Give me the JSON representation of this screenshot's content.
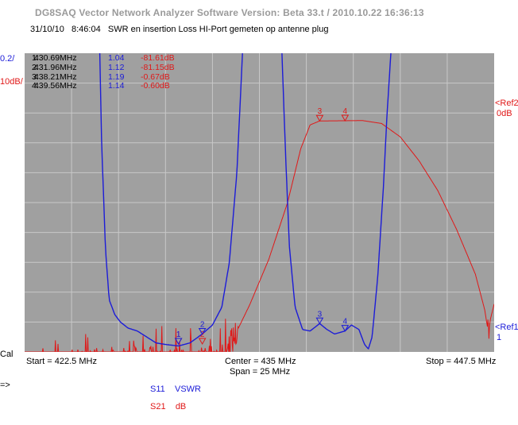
{
  "app_title": "DG8SAQ Vector Network Analyzer Software   Version:  Beta 33.t / 2010.10.22 16:36:13",
  "subtitle": {
    "date": "31/10/10",
    "time": "8:46:04",
    "description": "SWR en insertion Loss HI-Port gemeten op antenne plug"
  },
  "left_scale": {
    "s11_div": "0.2/",
    "s21_div": "10dB/"
  },
  "right_refs": {
    "ref2_label": "<Ref2",
    "ref2_value": "0dB",
    "ref1_label": "<Ref1",
    "ref1_value": "1"
  },
  "cal_label": "Cal",
  "arrow_label": "=>",
  "markers_table": [
    {
      "name": "1:",
      "freq": "430.69MHz",
      "vswr": "1.04",
      "db": "-81.61dB"
    },
    {
      "name": "2:",
      "freq": "431.96MHz",
      "vswr": "1.12",
      "db": "-81.15dB"
    },
    {
      "name": "3:",
      "freq": "438.21MHz",
      "vswr": "1.19",
      "db": "-0.67dB"
    },
    {
      "name": "4:",
      "freq": "439.56MHz",
      "vswr": "1.14",
      "db": "-0.60dB"
    }
  ],
  "freq_axis": {
    "start": "Start = 422.5 MHz",
    "center": "Center = 435 MHz",
    "span": "Span = 25 MHz",
    "stop": "Stop = 447.5 MHz"
  },
  "legend": [
    {
      "trace": "S11",
      "format": "VSWR",
      "color": "#1c1cd8"
    },
    {
      "trace": "S21",
      "format": "dB",
      "color": "#e01818"
    }
  ],
  "colors": {
    "plot_bg": "#a0a0a0",
    "grid": "#c8c8c8",
    "s11": "#1c1cd8",
    "s21": "#e01818"
  },
  "chart_data": {
    "type": "line",
    "x_unit": "MHz",
    "xlim": [
      422.5,
      447.5
    ],
    "grid": true,
    "series": [
      {
        "name": "S11",
        "format": "VSWR",
        "scale_per_div": 0.2,
        "ref_value": 1,
        "points": [
          [
            426.5,
            3.0
          ],
          [
            426.6,
            2.4
          ],
          [
            426.8,
            1.7
          ],
          [
            427.0,
            1.35
          ],
          [
            427.3,
            1.25
          ],
          [
            427.6,
            1.2
          ],
          [
            428.0,
            1.16
          ],
          [
            428.5,
            1.14
          ],
          [
            429.0,
            1.1
          ],
          [
            429.5,
            1.06
          ],
          [
            430.0,
            1.05
          ],
          [
            430.69,
            1.04
          ],
          [
            431.3,
            1.06
          ],
          [
            431.96,
            1.12
          ],
          [
            432.5,
            1.18
          ],
          [
            433.0,
            1.3
          ],
          [
            433.4,
            1.6
          ],
          [
            433.8,
            2.2
          ],
          [
            434.1,
            3.0
          ],
          [
            436.2,
            3.0
          ],
          [
            436.4,
            2.3
          ],
          [
            436.6,
            1.7
          ],
          [
            436.9,
            1.3
          ],
          [
            437.3,
            1.15
          ],
          [
            437.7,
            1.14
          ],
          [
            438.21,
            1.19
          ],
          [
            438.6,
            1.15
          ],
          [
            439.0,
            1.12
          ],
          [
            439.56,
            1.14
          ],
          [
            439.9,
            1.18
          ],
          [
            440.3,
            1.15
          ],
          [
            440.6,
            1.05
          ],
          [
            440.8,
            1.02
          ],
          [
            441.0,
            1.1
          ],
          [
            441.3,
            1.5
          ],
          [
            441.6,
            2.1
          ],
          [
            441.8,
            2.6
          ],
          [
            442.0,
            3.0
          ]
        ]
      },
      {
        "name": "S21",
        "format": "dB",
        "scale_per_div": 10,
        "ref_value": 0,
        "noise_floor_db": -83,
        "points": [
          [
            422.5,
            -83
          ],
          [
            425.0,
            -82
          ],
          [
            428.0,
            -80.5
          ],
          [
            429.5,
            -81
          ],
          [
            430.69,
            -81.61
          ],
          [
            431.96,
            -81.15
          ],
          [
            433.0,
            -80
          ],
          [
            433.5,
            -75
          ],
          [
            434.5,
            -62
          ],
          [
            435.5,
            -47
          ],
          [
            436.5,
            -28
          ],
          [
            437.2,
            -10
          ],
          [
            437.7,
            -2
          ],
          [
            438.21,
            -0.67
          ],
          [
            439.56,
            -0.6
          ],
          [
            440.5,
            -0.55
          ],
          [
            441.5,
            -1.5
          ],
          [
            442.5,
            -6
          ],
          [
            443.5,
            -14
          ],
          [
            444.5,
            -24
          ],
          [
            445.5,
            -37
          ],
          [
            446.5,
            -52
          ],
          [
            447.0,
            -64
          ],
          [
            447.2,
            -72
          ],
          [
            447.3,
            -67
          ],
          [
            447.5,
            -62
          ]
        ]
      }
    ],
    "markers": [
      {
        "id": "1",
        "freq": 430.69
      },
      {
        "id": "2",
        "freq": 431.96
      },
      {
        "id": "3",
        "freq": 438.21
      },
      {
        "id": "4",
        "freq": 439.56
      }
    ]
  }
}
